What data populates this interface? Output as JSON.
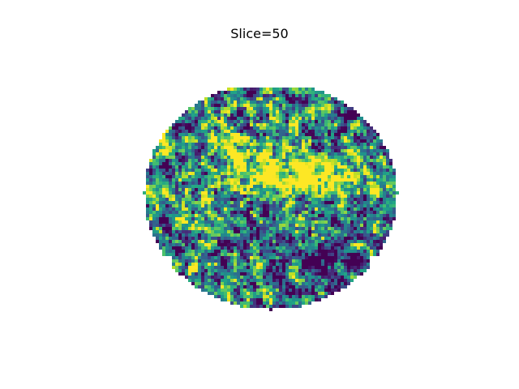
{
  "figure": {
    "title": "Slice=50"
  },
  "image": {
    "description_kind": "brain-slice-heatmap",
    "colormap": "viridis",
    "colors": {
      "low": "#440154",
      "mid_low": "#3b528b",
      "mid": "#21918c",
      "mid_high": "#5ec962",
      "high": "#fde725",
      "background": "#ffffff"
    },
    "axes_visible": false
  }
}
